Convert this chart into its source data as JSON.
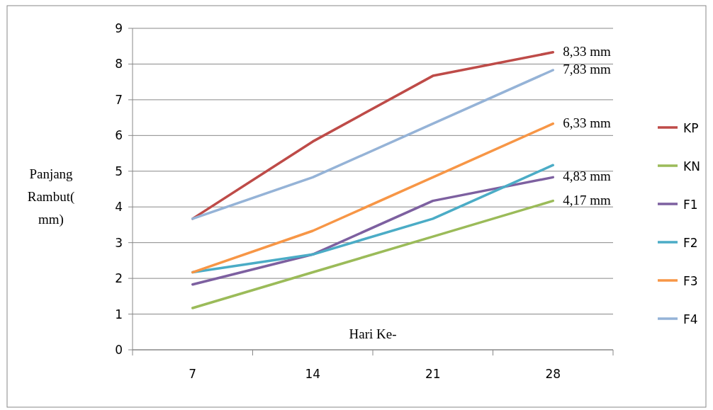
{
  "chart_data": {
    "type": "line",
    "xlabel": "Hari Ke-",
    "ylabel": "Panjang Rambut( mm)",
    "categories": [
      "7",
      "14",
      "21",
      "28"
    ],
    "series": [
      {
        "name": "KP",
        "color": "#be4b48",
        "values": [
          3.67,
          5.83,
          7.67,
          8.33
        ],
        "value_labels": [
          null,
          null,
          null,
          "8,33 mm"
        ]
      },
      {
        "name": "KN",
        "color": "#9bbb59",
        "values": [
          1.17,
          2.17,
          3.17,
          4.17
        ],
        "value_labels": [
          null,
          null,
          null,
          "4,17 mm"
        ]
      },
      {
        "name": "F1",
        "color": "#7d60a0",
        "values": [
          1.83,
          2.67,
          4.17,
          4.83
        ],
        "value_labels": [
          null,
          null,
          null,
          "4,83 mm"
        ]
      },
      {
        "name": "F2",
        "color": "#4bacc6",
        "values": [
          2.17,
          2.67,
          3.67,
          5.17
        ]
      },
      {
        "name": "F3",
        "color": "#f79646",
        "values": [
          2.17,
          3.33,
          4.83,
          6.33
        ],
        "value_labels": [
          null,
          null,
          null,
          "6,33 mm"
        ]
      },
      {
        "name": "F4",
        "color": "#95b3d7",
        "values": [
          3.67,
          4.83,
          6.33,
          7.83
        ],
        "value_labels": [
          null,
          null,
          null,
          "7,83 mm"
        ]
      }
    ],
    "ylim": [
      0,
      9
    ],
    "yticks": [
      0,
      1,
      2,
      3,
      4,
      5,
      6,
      7,
      8,
      9
    ],
    "grid": "y",
    "legend": "right",
    "marker": "none",
    "line_style": "solid"
  }
}
